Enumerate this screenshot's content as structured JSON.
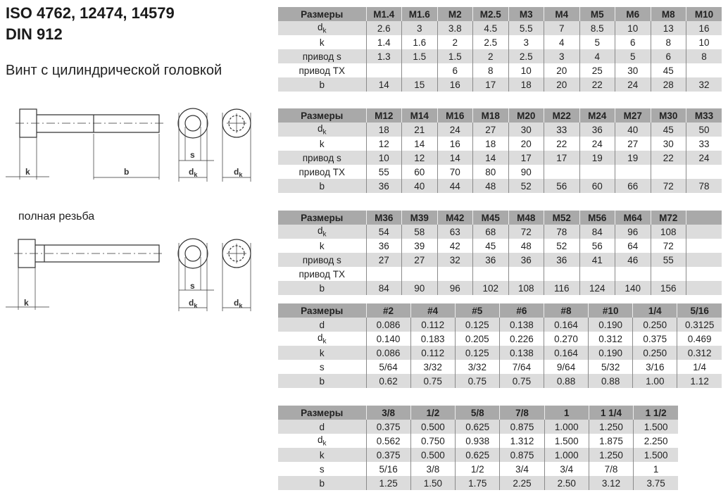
{
  "title_line1": "ISO 4762, 12474, 14579",
  "title_line2": "DIN 912",
  "subtitle": "Винт с цилиндрической головкой",
  "full_thread_label": "полная резьба",
  "drawing_labels": {
    "k": "k",
    "b": "b",
    "s": "s",
    "d": "d",
    "dk_sub": "k"
  },
  "colors": {
    "header": "#a9a9a9",
    "stripe": "#dcdcdc"
  },
  "tables": [
    {
      "header": [
        "Размеры",
        "M1.4",
        "M1.6",
        "M2",
        "M2.5",
        "M3",
        "M4",
        "M5",
        "M6",
        "M8",
        "M10"
      ],
      "rows": [
        {
          "label": "d",
          "sub": "k",
          "values": [
            "2.6",
            "3",
            "3.8",
            "4.5",
            "5.5",
            "7",
            "8.5",
            "10",
            "13",
            "16"
          ]
        },
        {
          "label": "k",
          "values": [
            "1.4",
            "1.6",
            "2",
            "2.5",
            "3",
            "4",
            "5",
            "6",
            "8",
            "10"
          ]
        },
        {
          "label": "привод s",
          "values": [
            "1.3",
            "1.5",
            "1.5",
            "2",
            "2.5",
            "3",
            "4",
            "5",
            "6",
            "8"
          ]
        },
        {
          "label": "привод TX",
          "values": [
            "",
            "",
            "6",
            "8",
            "10",
            "20",
            "25",
            "30",
            "45",
            ""
          ]
        },
        {
          "label": "b",
          "values": [
            "14",
            "15",
            "16",
            "17",
            "18",
            "20",
            "22",
            "24",
            "28",
            "32"
          ]
        }
      ]
    },
    {
      "header": [
        "Размеры",
        "M12",
        "M14",
        "M16",
        "M18",
        "M20",
        "M22",
        "M24",
        "M27",
        "M30",
        "M33"
      ],
      "rows": [
        {
          "label": "d",
          "sub": "k",
          "values": [
            "18",
            "21",
            "24",
            "27",
            "30",
            "33",
            "36",
            "40",
            "45",
            "50"
          ]
        },
        {
          "label": "k",
          "values": [
            "12",
            "14",
            "16",
            "18",
            "20",
            "22",
            "24",
            "27",
            "30",
            "33"
          ]
        },
        {
          "label": "привод s",
          "values": [
            "10",
            "12",
            "14",
            "14",
            "17",
            "17",
            "19",
            "19",
            "22",
            "24"
          ]
        },
        {
          "label": "привод TX",
          "values": [
            "55",
            "60",
            "70",
            "80",
            "90",
            "",
            "",
            "",
            "",
            ""
          ]
        },
        {
          "label": "b",
          "values": [
            "36",
            "40",
            "44",
            "48",
            "52",
            "56",
            "60",
            "66",
            "72",
            "78"
          ]
        }
      ]
    },
    {
      "header": [
        "Размеры",
        "M36",
        "M39",
        "M42",
        "M45",
        "M48",
        "M52",
        "M56",
        "M64",
        "M72",
        ""
      ],
      "rows": [
        {
          "label": "d",
          "sub": "k",
          "values": [
            "54",
            "58",
            "63",
            "68",
            "72",
            "78",
            "84",
            "96",
            "108",
            ""
          ]
        },
        {
          "label": "k",
          "values": [
            "36",
            "39",
            "42",
            "45",
            "48",
            "52",
            "56",
            "64",
            "72",
            ""
          ]
        },
        {
          "label": "привод s",
          "values": [
            "27",
            "27",
            "32",
            "36",
            "36",
            "36",
            "41",
            "46",
            "55",
            ""
          ]
        },
        {
          "label": "привод TX",
          "values": [
            "",
            "",
            "",
            "",
            "",
            "",
            "",
            "",
            "",
            ""
          ]
        },
        {
          "label": "b",
          "values": [
            "84",
            "90",
            "96",
            "102",
            "108",
            "116",
            "124",
            "140",
            "156",
            ""
          ]
        }
      ]
    },
    {
      "header": [
        "Размеры",
        "#2",
        "#4",
        "#5",
        "#6",
        "#8",
        "#10",
        "1/4",
        "5/16"
      ],
      "rows": [
        {
          "label": "d",
          "values": [
            "0.086",
            "0.112",
            "0.125",
            "0.138",
            "0.164",
            "0.190",
            "0.250",
            "0.3125"
          ]
        },
        {
          "label": "d",
          "sub": "k",
          "values": [
            "0.140",
            "0.183",
            "0.205",
            "0.226",
            "0.270",
            "0.312",
            "0.375",
            "0.469"
          ]
        },
        {
          "label": "k",
          "values": [
            "0.086",
            "0.112",
            "0.125",
            "0.138",
            "0.164",
            "0.190",
            "0.250",
            "0.312"
          ]
        },
        {
          "label": "s",
          "values": [
            "5/64",
            "3/32",
            "3/32",
            "7/64",
            "9/64",
            "5/32",
            "3/16",
            "1/4"
          ]
        },
        {
          "label": "b",
          "values": [
            "0.62",
            "0.75",
            "0.75",
            "0.75",
            "0.88",
            "0.88",
            "1.00",
            "1.12"
          ]
        }
      ]
    },
    {
      "header": [
        "Размеры",
        "3/8",
        "1/2",
        "5/8",
        "7/8",
        "1",
        "1 1/4",
        "1 1/2"
      ],
      "rows": [
        {
          "label": "d",
          "values": [
            "0.375",
            "0.500",
            "0.625",
            "0.875",
            "1.000",
            "1.250",
            "1.500"
          ]
        },
        {
          "label": "d",
          "sub": "k",
          "values": [
            "0.562",
            "0.750",
            "0.938",
            "1.312",
            "1.500",
            "1.875",
            "2.250"
          ]
        },
        {
          "label": "k",
          "values": [
            "0.375",
            "0.500",
            "0.625",
            "0.875",
            "1.000",
            "1.250",
            "1.500"
          ]
        },
        {
          "label": "s",
          "values": [
            "5/16",
            "3/8",
            "1/2",
            "3/4",
            "3/4",
            "7/8",
            "1"
          ]
        },
        {
          "label": "b",
          "values": [
            "1.25",
            "1.50",
            "1.75",
            "2.25",
            "2.50",
            "3.12",
            "3.75"
          ]
        }
      ]
    }
  ]
}
